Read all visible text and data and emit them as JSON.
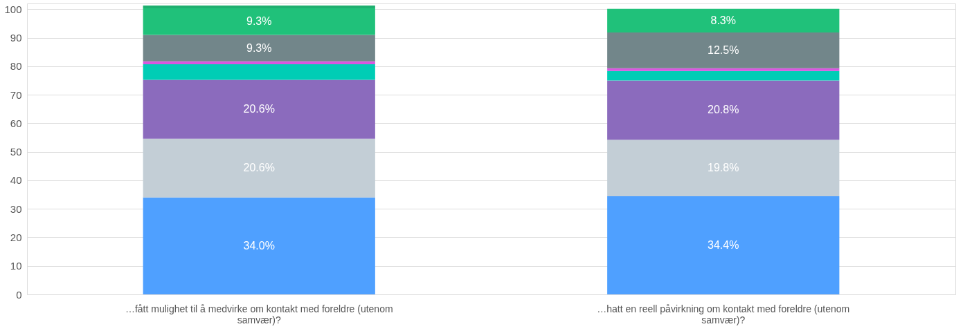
{
  "chart_data": {
    "type": "bar",
    "stacked": true,
    "categories": [
      "…fått mulighet til å medvirke om kontakt med foreldre (utenom samvær)?",
      "…hatt en reell påvirkning om kontakt med foreldre (utenom samvær)?"
    ],
    "series": [
      {
        "color": "#4fa0ff",
        "values": [
          34.0,
          34.4
        ],
        "value_labels": [
          "34.0%",
          "34.4%"
        ]
      },
      {
        "color": "#c3ced6",
        "values": [
          20.6,
          19.8
        ],
        "value_labels": [
          "20.6%",
          "19.8%"
        ]
      },
      {
        "color": "#8b6bbd",
        "values": [
          20.6,
          20.8
        ],
        "value_labels": [
          "20.6%",
          "20.8%"
        ]
      },
      {
        "color": "#00cdb5",
        "values": [
          5.5,
          3.3
        ]
      },
      {
        "color": "#d957e0",
        "values": [
          1.0,
          1.0
        ]
      },
      {
        "color": "#72868a",
        "values": [
          9.3,
          12.5
        ],
        "value_labels": [
          "9.3%",
          "12.5%"
        ]
      },
      {
        "color": "#20c17a",
        "values": [
          9.3,
          8.3
        ],
        "value_labels": [
          "9.3%",
          "8.3%"
        ]
      },
      {
        "color": "#1fb070",
        "values": [
          1.0,
          null
        ]
      }
    ],
    "ylim": [
      0,
      102
    ],
    "yticks": [
      0,
      10,
      20,
      30,
      40,
      50,
      60,
      70,
      80,
      90,
      100
    ],
    "grid": "y"
  }
}
